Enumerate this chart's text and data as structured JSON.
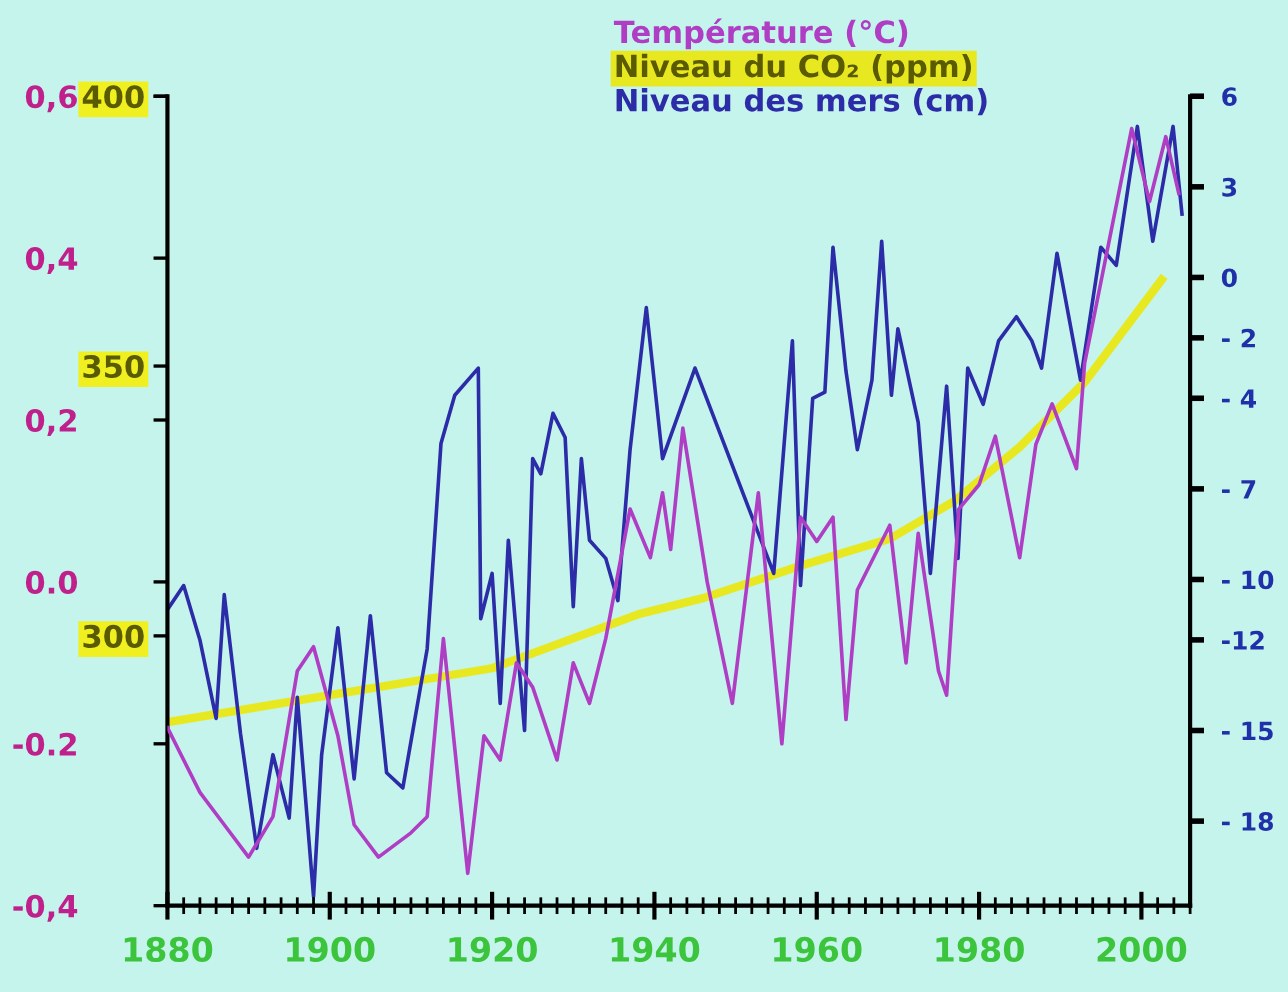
{
  "chart_data": {
    "type": "line",
    "legend": "top",
    "grid": false,
    "marker": "none",
    "line_style": "solid",
    "xlim": [
      1880,
      2006
    ],
    "xticks": [
      1880,
      1900,
      1920,
      1940,
      1960,
      1980,
      2000
    ],
    "ylim": [
      -0.4,
      0.6
    ],
    "yticks": [
      {
        "value": 0.6,
        "label": "0,6"
      },
      {
        "value": 0.4,
        "label": "0,4"
      },
      {
        "value": 0.2,
        "label": "0,2"
      },
      {
        "value": 0.0,
        "label": "0.0"
      },
      {
        "value": -0.2,
        "label": "-0.2"
      },
      {
        "value": -0.4,
        "label": "-0,4"
      }
    ],
    "y2lim": [
      -20.8,
      6
    ],
    "y2ticks": [
      6,
      3,
      0,
      {
        "value": -2,
        "label": "- 2"
      },
      {
        "value": -4,
        "label": "- 4"
      },
      {
        "value": -7,
        "label": "- 7"
      },
      {
        "value": -10,
        "label": "- 10"
      },
      {
        "value": -12,
        "label": "-12"
      },
      {
        "value": -15,
        "label": "- 15"
      },
      {
        "value": -18,
        "label": "- 18"
      }
    ],
    "y3lim": [
      250,
      400
    ],
    "y3ticks": [
      300,
      350,
      400
    ],
    "series": [
      {
        "name": "Température (°C)",
        "color": "#b03ec4",
        "x": [
          1880,
          1884,
          1887,
          1890,
          1893,
          1896,
          1898,
          1901,
          1903,
          1906,
          1910,
          1912,
          1914,
          1917,
          1919,
          1921,
          1923,
          1925,
          1928,
          1930,
          1932,
          1934,
          1937,
          1939.5,
          1941,
          1942,
          1943.5,
          1946.5,
          1949.6,
          1952.8,
          1955.7,
          1958,
          1960,
          1962,
          1963.6,
          1965,
          1969,
          1971,
          1972.5,
          1975,
          1976,
          1977.5,
          1980,
          1982,
          1985,
          1987,
          1989,
          1992,
          1993,
          1995,
          1996.6,
          1998.8,
          2001,
          2003,
          2004.6
        ],
        "values": [
          -0.18,
          -0.26,
          -0.3,
          -0.34,
          -0.29,
          -0.11,
          -0.08,
          -0.19,
          -0.3,
          -0.34,
          -0.31,
          -0.29,
          -0.07,
          -0.36,
          -0.19,
          -0.22,
          -0.1,
          -0.13,
          -0.22,
          -0.1,
          -0.15,
          -0.07,
          0.09,
          0.03,
          0.11,
          0.04,
          0.19,
          0.0,
          -0.15,
          0.11,
          -0.2,
          0.08,
          0.05,
          0.08,
          -0.17,
          -0.01,
          0.07,
          -0.1,
          0.06,
          -0.11,
          -0.14,
          0.09,
          0.12,
          0.18,
          0.03,
          0.17,
          0.22,
          0.14,
          0.27,
          0.37,
          0.45,
          0.56,
          0.47,
          0.55,
          0.48
        ]
      },
      {
        "name": "Niveau du CO₂ (ppm)",
        "color": "#e8e820",
        "axis": "y3",
        "x": [
          1880,
          1900,
          1920,
          1938,
          1946,
          1958,
          1969,
          1977,
          1985,
          1993,
          2002.5
        ],
        "values": [
          284,
          289,
          294,
          304,
          307,
          313,
          318,
          325,
          335,
          347,
          366
        ]
      },
      {
        "name": "Niveau des mers (cm)",
        "color": "#2c2ca8",
        "axis": "y2",
        "x": [
          1880,
          1882,
          1884,
          1886,
          1887,
          1889,
          1891,
          1893,
          1895,
          1896,
          1898,
          1899,
          1901,
          1903,
          1905,
          1907,
          1909,
          1912,
          1913.7,
          1915.4,
          1918.3,
          1918.6,
          1920,
          1921,
          1922,
          1924,
          1925,
          1926,
          1927.5,
          1929,
          1930,
          1931,
          1932,
          1934,
          1935.5,
          1937,
          1939,
          1941,
          1945,
          1954.7,
          1957,
          1958,
          1959.5,
          1961,
          1962,
          1963.6,
          1965,
          1966.8,
          1968,
          1969.2,
          1970,
          1972.5,
          1974,
          1976,
          1977.4,
          1978.6,
          1980.5,
          1982.4,
          1984.6,
          1986.5,
          1987.7,
          1989.6,
          1992.5,
          1995,
          1996.9,
          1999.5,
          2001.4,
          2003.9,
          2005
        ],
        "values": [
          -11,
          -10.2,
          -12,
          -14.6,
          -10.5,
          -15.1,
          -18.9,
          -15.8,
          -17.9,
          -13.9,
          -20.5,
          -15.8,
          -11.6,
          -16.6,
          -11.2,
          -16.4,
          -16.9,
          -12.3,
          -5.5,
          -3.9,
          -3,
          -11.3,
          -9.8,
          -14.1,
          -8.7,
          -15,
          -6,
          -6.5,
          -4.5,
          -5.3,
          -10.9,
          -6,
          -8.7,
          -9.3,
          -10.7,
          -5.7,
          -1,
          -6,
          -3,
          -9.8,
          -2.1,
          -10.2,
          -4,
          -3.8,
          1,
          -3.1,
          -5.7,
          -3.4,
          1.2,
          -3.9,
          -1.7,
          -4.8,
          -9.8,
          -3.6,
          -9.3,
          -3,
          -4.2,
          -2.1,
          -1.3,
          -2.1,
          -3,
          0.8,
          -3.4,
          1,
          0.4,
          5,
          1.2,
          5,
          2.1
        ]
      }
    ]
  }
}
